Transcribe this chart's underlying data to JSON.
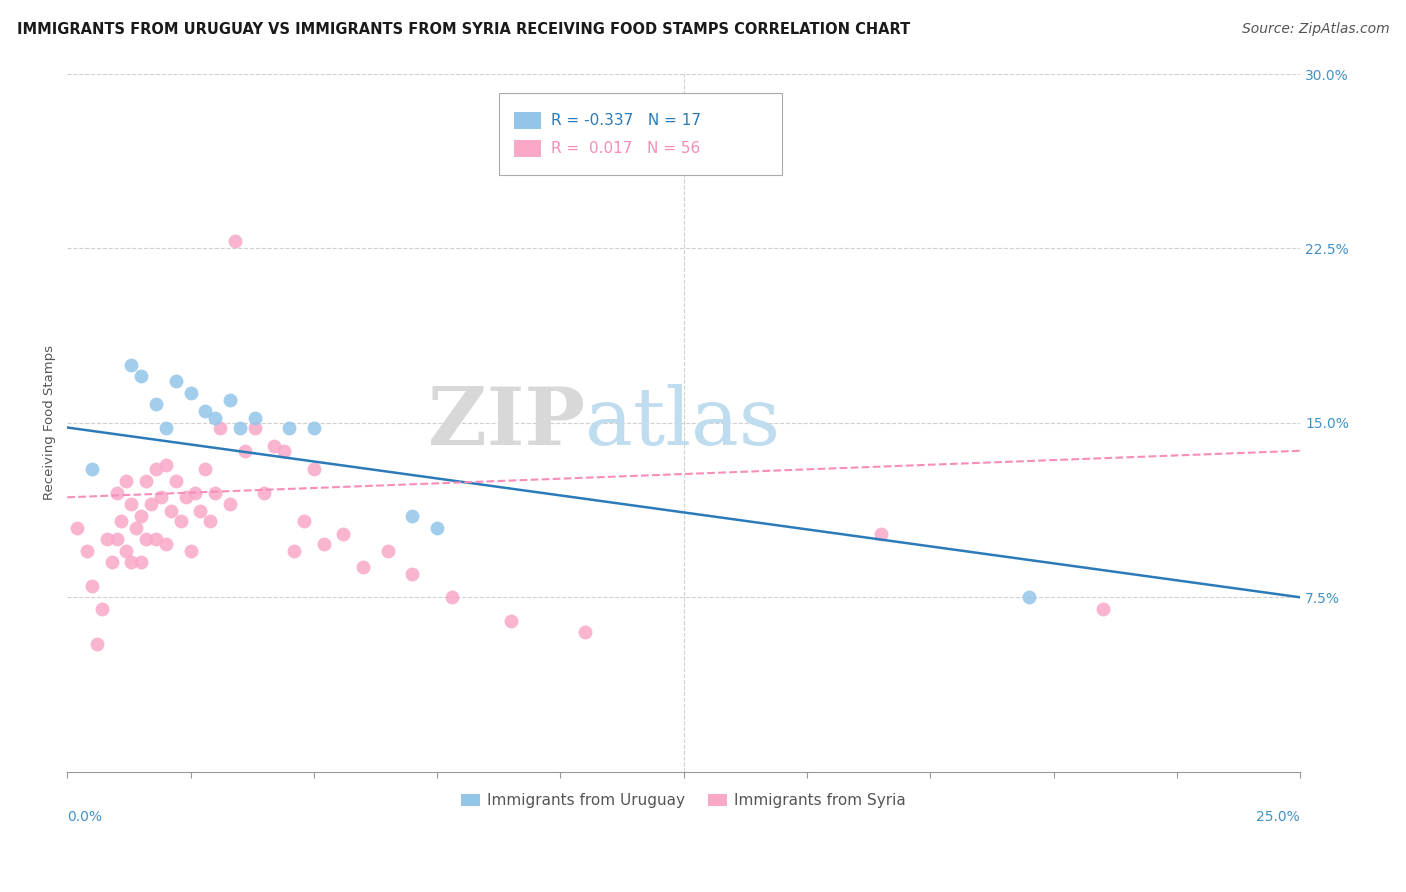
{
  "title": "IMMIGRANTS FROM URUGUAY VS IMMIGRANTS FROM SYRIA RECEIVING FOOD STAMPS CORRELATION CHART",
  "source": "Source: ZipAtlas.com",
  "ylabel": "Receiving Food Stamps",
  "xlim": [
    0.0,
    0.25
  ],
  "ylim": [
    0.0,
    0.3
  ],
  "yticks": [
    0.075,
    0.15,
    0.225,
    0.3
  ],
  "ytick_labels": [
    "7.5%",
    "15.0%",
    "22.5%",
    "30.0%"
  ],
  "xtick_labels_outer": [
    "0.0%",
    "25.0%"
  ],
  "legend_entries": [
    {
      "label": "Immigrants from Uruguay",
      "color": "#92c5e8",
      "line_color": "#2b7bba",
      "R": "-0.337",
      "N": "17"
    },
    {
      "label": "Immigrants from Syria",
      "color": "#f9a8c8",
      "line_color": "#f78db8",
      "R": "0.017",
      "N": "56"
    }
  ],
  "watermark_zip": "ZIP",
  "watermark_atlas": "atlas",
  "background_color": "#ffffff",
  "grid_color": "#d0d0d0",
  "uruguay_scatter": {
    "x": [
      0.005,
      0.013,
      0.015,
      0.018,
      0.02,
      0.022,
      0.025,
      0.028,
      0.03,
      0.033,
      0.035,
      0.038,
      0.045,
      0.05,
      0.07,
      0.075,
      0.195
    ],
    "y": [
      0.13,
      0.175,
      0.17,
      0.158,
      0.148,
      0.168,
      0.163,
      0.155,
      0.152,
      0.16,
      0.148,
      0.152,
      0.148,
      0.148,
      0.11,
      0.105,
      0.075
    ]
  },
  "syria_scatter": {
    "x": [
      0.002,
      0.004,
      0.005,
      0.006,
      0.007,
      0.008,
      0.009,
      0.01,
      0.01,
      0.011,
      0.012,
      0.012,
      0.013,
      0.013,
      0.014,
      0.015,
      0.015,
      0.016,
      0.016,
      0.017,
      0.018,
      0.018,
      0.019,
      0.02,
      0.02,
      0.021,
      0.022,
      0.023,
      0.024,
      0.025,
      0.026,
      0.027,
      0.028,
      0.029,
      0.03,
      0.031,
      0.033,
      0.034,
      0.036,
      0.038,
      0.04,
      0.042,
      0.044,
      0.046,
      0.048,
      0.05,
      0.052,
      0.056,
      0.06,
      0.065,
      0.07,
      0.078,
      0.09,
      0.105,
      0.165,
      0.21
    ],
    "y": [
      0.105,
      0.095,
      0.08,
      0.055,
      0.07,
      0.1,
      0.09,
      0.1,
      0.12,
      0.108,
      0.125,
      0.095,
      0.115,
      0.09,
      0.105,
      0.11,
      0.09,
      0.125,
      0.1,
      0.115,
      0.13,
      0.1,
      0.118,
      0.132,
      0.098,
      0.112,
      0.125,
      0.108,
      0.118,
      0.095,
      0.12,
      0.112,
      0.13,
      0.108,
      0.12,
      0.148,
      0.115,
      0.228,
      0.138,
      0.148,
      0.12,
      0.14,
      0.138,
      0.095,
      0.108,
      0.13,
      0.098,
      0.102,
      0.088,
      0.095,
      0.085,
      0.075,
      0.065,
      0.06,
      0.102,
      0.07
    ]
  },
  "uruguay_line": {
    "x0": 0.0,
    "y0": 0.148,
    "x1": 0.25,
    "y1": 0.075
  },
  "syria_line": {
    "x0": 0.0,
    "y0": 0.118,
    "x1": 0.25,
    "y1": 0.138
  },
  "title_fontsize": 10.5,
  "axis_fontsize": 9.5,
  "tick_fontsize": 10,
  "legend_fontsize": 11,
  "source_fontsize": 10
}
